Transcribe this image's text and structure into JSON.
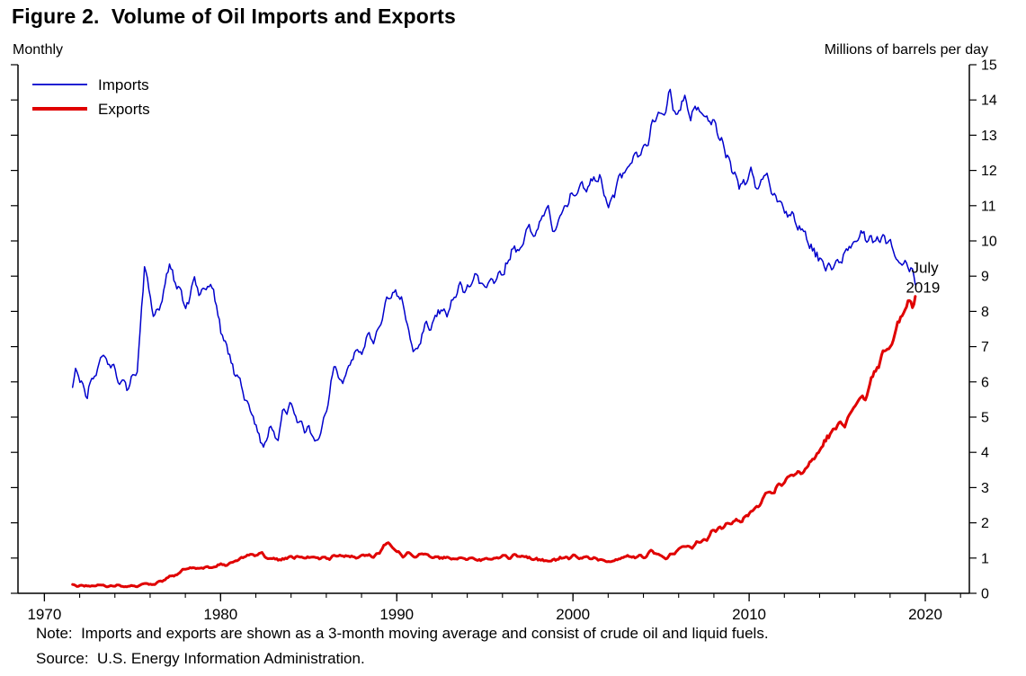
{
  "figure": {
    "title": "Figure 2.  Volume of Oil Imports and Exports",
    "left_axis_label": "Monthly",
    "right_axis_label": "Millions of barrels per day",
    "note": "Note:  Imports and exports are shown as a 3-month moving average and consist of crude oil and liquid fuels.",
    "source": "Source:  U.S. Energy Information Administration."
  },
  "chart_data": {
    "type": "line",
    "title": "Figure 2.  Volume of Oil Imports and Exports",
    "subtitle_left": "Monthly",
    "ylabel": "Millions of barrels per day",
    "x_axis": {
      "min": 1968.5,
      "max": 2022.5,
      "major_ticks": [
        1970,
        1980,
        1990,
        2000,
        2010,
        2020
      ],
      "minor_tick_step": 2
    },
    "y_axis": {
      "min": 0,
      "max": 15,
      "tick_step": 1,
      "labels_side": "right"
    },
    "grid": false,
    "legend_position": "top-left",
    "annotation": {
      "lines": [
        "July",
        "2019"
      ],
      "x": 2018.9,
      "y": 9.2
    },
    "series": [
      {
        "name": "Imports",
        "color": "#0000cc",
        "width": 1.5,
        "noise": 0.18,
        "noise_mode": "constant",
        "points": [
          [
            1971.6,
            6.0
          ],
          [
            1972.0,
            6.3
          ],
          [
            1972.4,
            5.6
          ],
          [
            1972.8,
            6.2
          ],
          [
            1973.2,
            6.5
          ],
          [
            1973.6,
            6.6
          ],
          [
            1974.0,
            6.2
          ],
          [
            1974.5,
            5.9
          ],
          [
            1975.0,
            5.9
          ],
          [
            1975.3,
            6.6
          ],
          [
            1975.7,
            9.4
          ],
          [
            1976.2,
            7.8
          ],
          [
            1976.7,
            8.4
          ],
          [
            1977.1,
            9.2
          ],
          [
            1977.6,
            8.5
          ],
          [
            1978.0,
            8.2
          ],
          [
            1978.5,
            8.8
          ],
          [
            1979.0,
            8.5
          ],
          [
            1979.5,
            8.7
          ],
          [
            1980.0,
            7.4
          ],
          [
            1980.5,
            6.7
          ],
          [
            1981.0,
            6.2
          ],
          [
            1981.5,
            5.4
          ],
          [
            1982.0,
            4.8
          ],
          [
            1982.4,
            4.0
          ],
          [
            1982.8,
            4.8
          ],
          [
            1983.2,
            4.4
          ],
          [
            1983.6,
            5.1
          ],
          [
            1984.0,
            5.5
          ],
          [
            1984.4,
            4.9
          ],
          [
            1984.8,
            4.6
          ],
          [
            1985.2,
            4.7
          ],
          [
            1985.6,
            4.3
          ],
          [
            1986.0,
            5.2
          ],
          [
            1986.5,
            6.4
          ],
          [
            1987.0,
            6.1
          ],
          [
            1987.5,
            6.7
          ],
          [
            1988.0,
            6.9
          ],
          [
            1988.5,
            7.2
          ],
          [
            1989.0,
            7.6
          ],
          [
            1989.6,
            8.6
          ],
          [
            1990.1,
            8.4
          ],
          [
            1990.5,
            7.9
          ],
          [
            1991.0,
            6.7
          ],
          [
            1991.5,
            7.3
          ],
          [
            1992.0,
            7.6
          ],
          [
            1992.5,
            8.0
          ],
          [
            1993.0,
            8.1
          ],
          [
            1993.5,
            8.7
          ],
          [
            1994.0,
            8.5
          ],
          [
            1994.5,
            9.1
          ],
          [
            1995.0,
            8.6
          ],
          [
            1995.5,
            9.0
          ],
          [
            1996.0,
            9.0
          ],
          [
            1996.5,
            9.6
          ],
          [
            1997.0,
            9.9
          ],
          [
            1997.5,
            10.3
          ],
          [
            1998.0,
            10.4
          ],
          [
            1998.5,
            10.9
          ],
          [
            1999.0,
            10.3
          ],
          [
            1999.5,
            10.8
          ],
          [
            2000.0,
            11.3
          ],
          [
            2000.5,
            11.8
          ],
          [
            2001.0,
            11.5
          ],
          [
            2001.5,
            11.9
          ],
          [
            2002.0,
            11.1
          ],
          [
            2002.5,
            11.6
          ],
          [
            2003.0,
            11.9
          ],
          [
            2003.5,
            12.4
          ],
          [
            2004.0,
            12.6
          ],
          [
            2004.5,
            13.3
          ],
          [
            2005.0,
            13.4
          ],
          [
            2005.5,
            14.2
          ],
          [
            2005.9,
            13.5
          ],
          [
            2006.3,
            14.0
          ],
          [
            2006.7,
            13.4
          ],
          [
            2007.1,
            13.9
          ],
          [
            2007.5,
            13.4
          ],
          [
            2008.0,
            13.3
          ],
          [
            2008.5,
            12.8
          ],
          [
            2009.0,
            12.2
          ],
          [
            2009.5,
            11.7
          ],
          [
            2010.0,
            11.9
          ],
          [
            2010.5,
            11.6
          ],
          [
            2011.0,
            11.8
          ],
          [
            2011.5,
            11.2
          ],
          [
            2012.0,
            11.0
          ],
          [
            2012.5,
            10.6
          ],
          [
            2013.0,
            10.3
          ],
          [
            2013.5,
            9.9
          ],
          [
            2014.0,
            9.5
          ],
          [
            2014.5,
            9.2
          ],
          [
            2015.0,
            9.3
          ],
          [
            2015.5,
            9.6
          ],
          [
            2016.0,
            9.9
          ],
          [
            2016.5,
            10.2
          ],
          [
            2017.0,
            10.0
          ],
          [
            2017.5,
            10.2
          ],
          [
            2018.0,
            10.1
          ],
          [
            2018.5,
            9.6
          ],
          [
            2019.0,
            9.4
          ],
          [
            2019.5,
            9.0
          ]
        ]
      },
      {
        "name": "Exports",
        "color": "#e00000",
        "width": 3,
        "noise": 0.05,
        "noise_mode": "proportional",
        "points": [
          [
            1971.6,
            0.2
          ],
          [
            1972.5,
            0.22
          ],
          [
            1973.5,
            0.22
          ],
          [
            1974.5,
            0.2
          ],
          [
            1975.5,
            0.22
          ],
          [
            1976.2,
            0.28
          ],
          [
            1976.8,
            0.38
          ],
          [
            1977.3,
            0.5
          ],
          [
            1977.8,
            0.62
          ],
          [
            1978.3,
            0.72
          ],
          [
            1978.8,
            0.7
          ],
          [
            1979.3,
            0.72
          ],
          [
            1979.8,
            0.8
          ],
          [
            1980.3,
            0.82
          ],
          [
            1980.8,
            0.9
          ],
          [
            1981.3,
            1.02
          ],
          [
            1981.8,
            1.08
          ],
          [
            1982.3,
            1.1
          ],
          [
            1982.8,
            1.0
          ],
          [
            1983.3,
            0.95
          ],
          [
            1983.8,
            1.02
          ],
          [
            1984.3,
            1.05
          ],
          [
            1984.8,
            1.0
          ],
          [
            1985.3,
            1.05
          ],
          [
            1985.8,
            1.0
          ],
          [
            1986.5,
            1.02
          ],
          [
            1987.2,
            1.05
          ],
          [
            1988.0,
            1.08
          ],
          [
            1988.7,
            1.05
          ],
          [
            1989.5,
            1.45
          ],
          [
            1990.0,
            1.12
          ],
          [
            1990.7,
            1.1
          ],
          [
            1991.5,
            1.08
          ],
          [
            1992.3,
            1.02
          ],
          [
            1993.0,
            1.0
          ],
          [
            1994.0,
            0.95
          ],
          [
            1995.0,
            0.95
          ],
          [
            1996.0,
            1.0
          ],
          [
            1997.0,
            1.05
          ],
          [
            1998.0,
            0.95
          ],
          [
            1999.0,
            0.92
          ],
          [
            2000.0,
            1.05
          ],
          [
            2001.0,
            1.0
          ],
          [
            2002.0,
            0.95
          ],
          [
            2003.0,
            1.0
          ],
          [
            2004.0,
            1.05
          ],
          [
            2004.5,
            1.2
          ],
          [
            2005.0,
            1.1
          ],
          [
            2005.3,
            0.95
          ],
          [
            2005.8,
            1.2
          ],
          [
            2006.3,
            1.28
          ],
          [
            2007.0,
            1.4
          ],
          [
            2007.5,
            1.5
          ],
          [
            2008.0,
            1.8
          ],
          [
            2008.5,
            1.85
          ],
          [
            2009.0,
            2.0
          ],
          [
            2009.5,
            2.1
          ],
          [
            2010.0,
            2.3
          ],
          [
            2010.5,
            2.45
          ],
          [
            2011.0,
            2.8
          ],
          [
            2011.5,
            3.0
          ],
          [
            2012.0,
            3.15
          ],
          [
            2012.5,
            3.35
          ],
          [
            2013.0,
            3.5
          ],
          [
            2013.5,
            3.75
          ],
          [
            2014.0,
            4.1
          ],
          [
            2014.5,
            4.45
          ],
          [
            2015.0,
            4.7
          ],
          [
            2015.5,
            4.9
          ],
          [
            2016.0,
            5.2
          ],
          [
            2016.5,
            5.6
          ],
          [
            2017.0,
            6.1
          ],
          [
            2017.5,
            6.6
          ],
          [
            2018.0,
            7.1
          ],
          [
            2018.5,
            7.7
          ],
          [
            2019.0,
            8.1
          ],
          [
            2019.5,
            8.5
          ]
        ]
      }
    ]
  }
}
